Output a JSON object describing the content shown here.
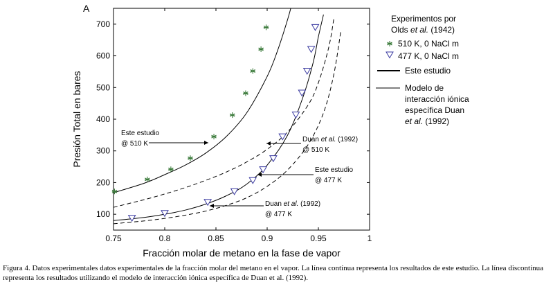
{
  "chart_data": {
    "type": "line",
    "panel_label": "A",
    "xlabel": "Fracción molar de metano en la fase de vapor",
    "ylabel": "Presión Total en bares",
    "xlim": [
      0.75,
      1.0
    ],
    "ylim": [
      50,
      750
    ],
    "xticks": [
      "0.75",
      "0.8",
      "0.85",
      "0.9",
      "0.95",
      "1"
    ],
    "yticks": [
      "100",
      "200",
      "300",
      "400",
      "500",
      "600",
      "700"
    ],
    "legend": {
      "title": "Experimentos por Olds et al. (1942)",
      "items": [
        "510 K, 0 NaCl m",
        "477 K, 0 NaCl m",
        "Este estudio",
        "Modelo de interacción iónica específica Duan et al. (1992)"
      ]
    },
    "series": [
      {
        "name": "510 K, 0 NaCl m",
        "marker": "asterisk",
        "color": "#3a7a3a",
        "x": [
          0.751,
          0.783,
          0.806,
          0.825,
          0.848,
          0.866,
          0.879,
          0.886,
          0.894,
          0.899
        ],
        "y": [
          172,
          210,
          242,
          277,
          345,
          413,
          482,
          552,
          621,
          690
        ]
      },
      {
        "name": "477 K, 0 NaCl m",
        "marker": "triangle-down",
        "color": "#3a3aa0",
        "x": [
          0.768,
          0.8,
          0.842,
          0.868,
          0.886,
          0.896,
          0.906,
          0.915,
          0.928,
          0.934,
          0.939,
          0.943,
          0.947
        ],
        "y": [
          88,
          103,
          138,
          172,
          207,
          241,
          276,
          345,
          414,
          483,
          552,
          621,
          690
        ]
      },
      {
        "name": "Este estudio @ 510 K",
        "style": "solid",
        "x": [
          0.75,
          0.78,
          0.8,
          0.82,
          0.84,
          0.86,
          0.88,
          0.9,
          0.91,
          0.92,
          0.925,
          0.93
        ],
        "y": [
          168,
          198,
          225,
          255,
          293,
          345,
          420,
          535,
          615,
          715,
          775,
          850
        ]
      },
      {
        "name": "Duan et al. (1992) @ 510 K",
        "style": "dashed",
        "x": [
          0.75,
          0.78,
          0.8,
          0.82,
          0.84,
          0.86,
          0.88,
          0.9,
          0.92,
          0.94,
          0.95,
          0.96,
          0.965
        ],
        "y": [
          122,
          146,
          164,
          184,
          207,
          233,
          265,
          305,
          360,
          445,
          515,
          625,
          715
        ]
      },
      {
        "name": "Este estudio @ 477 K",
        "style": "solid",
        "x": [
          0.75,
          0.78,
          0.8,
          0.82,
          0.84,
          0.86,
          0.88,
          0.9,
          0.92,
          0.935,
          0.945,
          0.95,
          0.955
        ],
        "y": [
          80,
          90,
          100,
          113,
          132,
          158,
          195,
          255,
          350,
          470,
          580,
          660,
          730
        ]
      },
      {
        "name": "Duan et al. (1992) @ 477 K",
        "style": "dashed",
        "x": [
          0.75,
          0.78,
          0.8,
          0.82,
          0.84,
          0.86,
          0.88,
          0.9,
          0.92,
          0.94,
          0.955,
          0.965,
          0.972
        ],
        "y": [
          70,
          79,
          87,
          97,
          110,
          128,
          152,
          188,
          240,
          320,
          420,
          540,
          680
        ]
      }
    ],
    "annotations": [
      {
        "lines": [
          "Este estudio",
          "@ 510 K"
        ],
        "italic_part": ""
      },
      {
        "lines": [
          "Duan et al. (1992)",
          "@ 510 K"
        ],
        "italic_part": "et al."
      },
      {
        "lines": [
          "Este estudio",
          "@ 477 K"
        ],
        "italic_part": ""
      },
      {
        "lines": [
          "Duan et al. (1992)",
          "@ 477 K"
        ],
        "italic_part": "et al."
      }
    ]
  },
  "caption": "Figura 4. Datos experimentales datos experimentales de la fracción molar del metano en el vapor. La línea contínua representa los resultados de este estudio. La línea discontínua representa los resultados utilizando el modelo de interacción iónica específica de Duan et al. (1992)."
}
